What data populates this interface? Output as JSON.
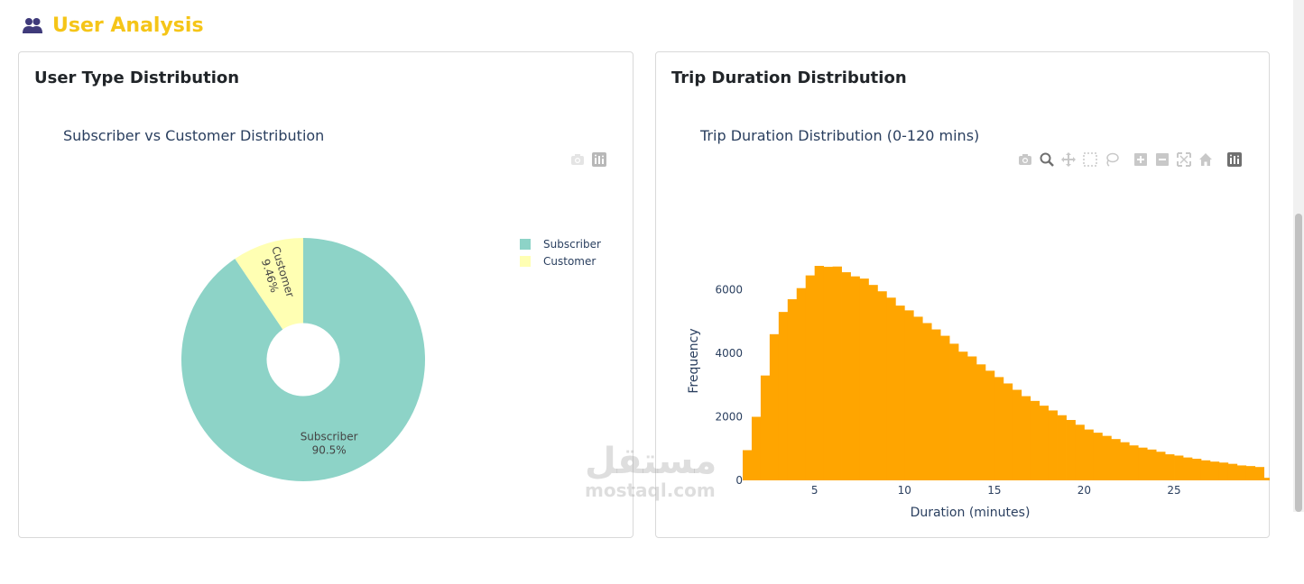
{
  "section": {
    "title": "User Analysis",
    "icon": "users-icon"
  },
  "cards": [
    {
      "title": "User Type Distribution",
      "plot_title": "Subscriber vs Customer Distribution",
      "modebar": [
        "camera-icon",
        "plotly-logo-icon"
      ]
    },
    {
      "title": "Trip Duration Distribution",
      "plot_title": "Trip Duration Distribution (0-120 mins)",
      "modebar": [
        "camera-icon",
        "zoom-icon",
        "pan-icon",
        "box-select-icon",
        "lasso-icon",
        "zoom-in-icon",
        "zoom-out-icon",
        "autoscale-icon",
        "home-icon",
        "plotly-logo-icon"
      ]
    }
  ],
  "chart_data": [
    {
      "type": "pie",
      "hole": 0.3,
      "title": "Subscriber vs Customer Distribution",
      "labels": [
        "Subscriber",
        "Customer"
      ],
      "values": [
        90.5,
        9.46
      ],
      "text": [
        "90.5%",
        "9.46%"
      ],
      "colors": [
        "#8dd3c7",
        "#ffffb3"
      ],
      "legend": {
        "position": "top-right",
        "entries": [
          "Subscriber",
          "Customer"
        ]
      }
    },
    {
      "type": "bar",
      "title": "Trip Duration Distribution (0-120 mins)",
      "xlabel": "Duration (minutes)",
      "ylabel": "Frequency",
      "xlim": [
        1,
        25.5
      ],
      "ylim": [
        0,
        7800
      ],
      "xticks": [
        5,
        10,
        15,
        20,
        25
      ],
      "yticks": [
        0,
        2000,
        4000,
        6000
      ],
      "bin_width": 0.5,
      "bin_start": 1,
      "color": "#ffa500",
      "values": [
        950,
        2000,
        3300,
        4600,
        5300,
        5700,
        6050,
        6450,
        6750,
        6720,
        6730,
        6550,
        6420,
        6350,
        6150,
        5950,
        5750,
        5500,
        5350,
        5150,
        4950,
        4750,
        4550,
        4300,
        4050,
        3900,
        3650,
        3450,
        3250,
        3050,
        2850,
        2650,
        2500,
        2350,
        2200,
        2050,
        1900,
        1750,
        1600,
        1500,
        1400,
        1300,
        1200,
        1100,
        1030,
        970,
        900,
        820,
        780,
        720,
        680,
        630,
        590,
        560,
        520,
        470,
        450,
        420,
        80
      ]
    }
  ],
  "watermark": {
    "logo": "مستقل",
    "text": "mostaql.com"
  }
}
